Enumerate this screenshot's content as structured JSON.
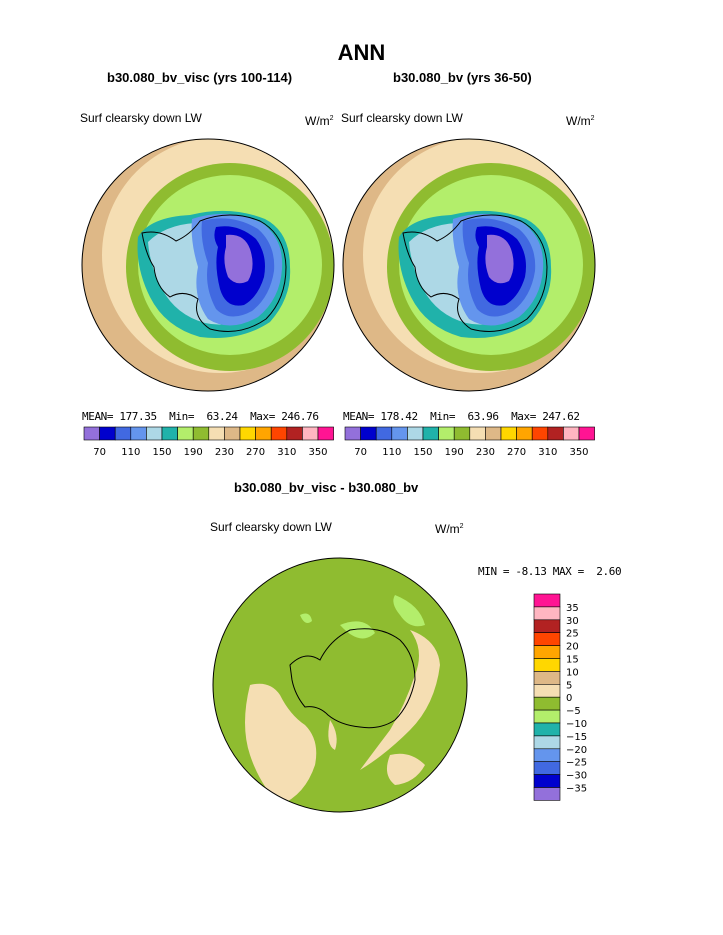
{
  "page": {
    "title": "ANN"
  },
  "panels": [
    {
      "case": "b30.080_bv_visc (yrs 100-114)",
      "variable": "Surf clearsky down LW",
      "units_base": "W/m",
      "units_exp": "2",
      "mean_label": "MEAN=",
      "mean": "177.35",
      "min_label": "Min=",
      "min": "63.24",
      "max_label": "Max=",
      "max": "246.76"
    },
    {
      "case": "b30.080_bv (yrs 36-50)",
      "variable": "Surf clearsky down LW",
      "units_base": "W/m",
      "units_exp": "2",
      "mean_label": "MEAN=",
      "mean": "178.42",
      "min_label": "Min=",
      "min": "63.96",
      "max_label": "Max=",
      "max": "247.62"
    }
  ],
  "diff": {
    "title": "b30.080_bv_visc - b30.080_bv",
    "variable": "Surf clearsky down LW",
    "units_base": "W/m",
    "units_exp": "2",
    "min_label": "MIN =",
    "min": "-8.13",
    "max_label": "MAX =",
    "max": "2.60"
  },
  "colorbar_top": {
    "colors": [
      "#9370db",
      "#0000cd",
      "#4169e1",
      "#6495ed",
      "#add8e6",
      "#20b2aa",
      "#b3ee6b",
      "#8fbc30",
      "#f5deb3",
      "#deb887",
      "#ffd700",
      "#ffa500",
      "#ff4500",
      "#b22222",
      "#ffb6c1",
      "#ff1493"
    ],
    "labels": [
      "70",
      "110",
      "150",
      "190",
      "230",
      "270",
      "310",
      "350"
    ]
  },
  "colorbar_diff": {
    "colors": [
      "#ff1493",
      "#ffb6c1",
      "#b22222",
      "#ff4500",
      "#ffa500",
      "#ffd700",
      "#deb887",
      "#f5deb3",
      "#8fbc30",
      "#b3ee6b",
      "#20b2aa",
      "#add8e6",
      "#6495ed",
      "#4169e1",
      "#0000cd",
      "#9370db"
    ],
    "labels": [
      "35",
      "30",
      "25",
      "20",
      "15",
      "10",
      "5",
      "0",
      "−5",
      "−10",
      "−15",
      "−20",
      "−25",
      "−30",
      "−35"
    ]
  },
  "chart_data": [
    {
      "type": "heatmap",
      "projection": "polar stereographic (south pole)",
      "title": "b30.080_bv_visc (yrs 100-114)",
      "variable": "Surf clearsky down LW",
      "units": "W/m2",
      "contour_levels": [
        70,
        90,
        110,
        130,
        150,
        170,
        190,
        210,
        230,
        250,
        270,
        290,
        310,
        330,
        350
      ],
      "mean": 177.35,
      "min": 63.24,
      "max": 246.76
    },
    {
      "type": "heatmap",
      "projection": "polar stereographic (south pole)",
      "title": "b30.080_bv (yrs 36-50)",
      "variable": "Surf clearsky down LW",
      "units": "W/m2",
      "contour_levels": [
        70,
        90,
        110,
        130,
        150,
        170,
        190,
        210,
        230,
        250,
        270,
        290,
        310,
        330,
        350
      ],
      "mean": 178.42,
      "min": 63.96,
      "max": 247.62
    },
    {
      "type": "heatmap",
      "projection": "polar stereographic (south pole)",
      "title": "b30.080_bv_visc - b30.080_bv",
      "variable": "Surf clearsky down LW",
      "units": "W/m2",
      "contour_levels": [
        -35,
        -30,
        -25,
        -20,
        -15,
        -10,
        -5,
        0,
        5,
        10,
        15,
        20,
        25,
        30,
        35
      ],
      "min": -8.13,
      "max": 2.6
    }
  ]
}
